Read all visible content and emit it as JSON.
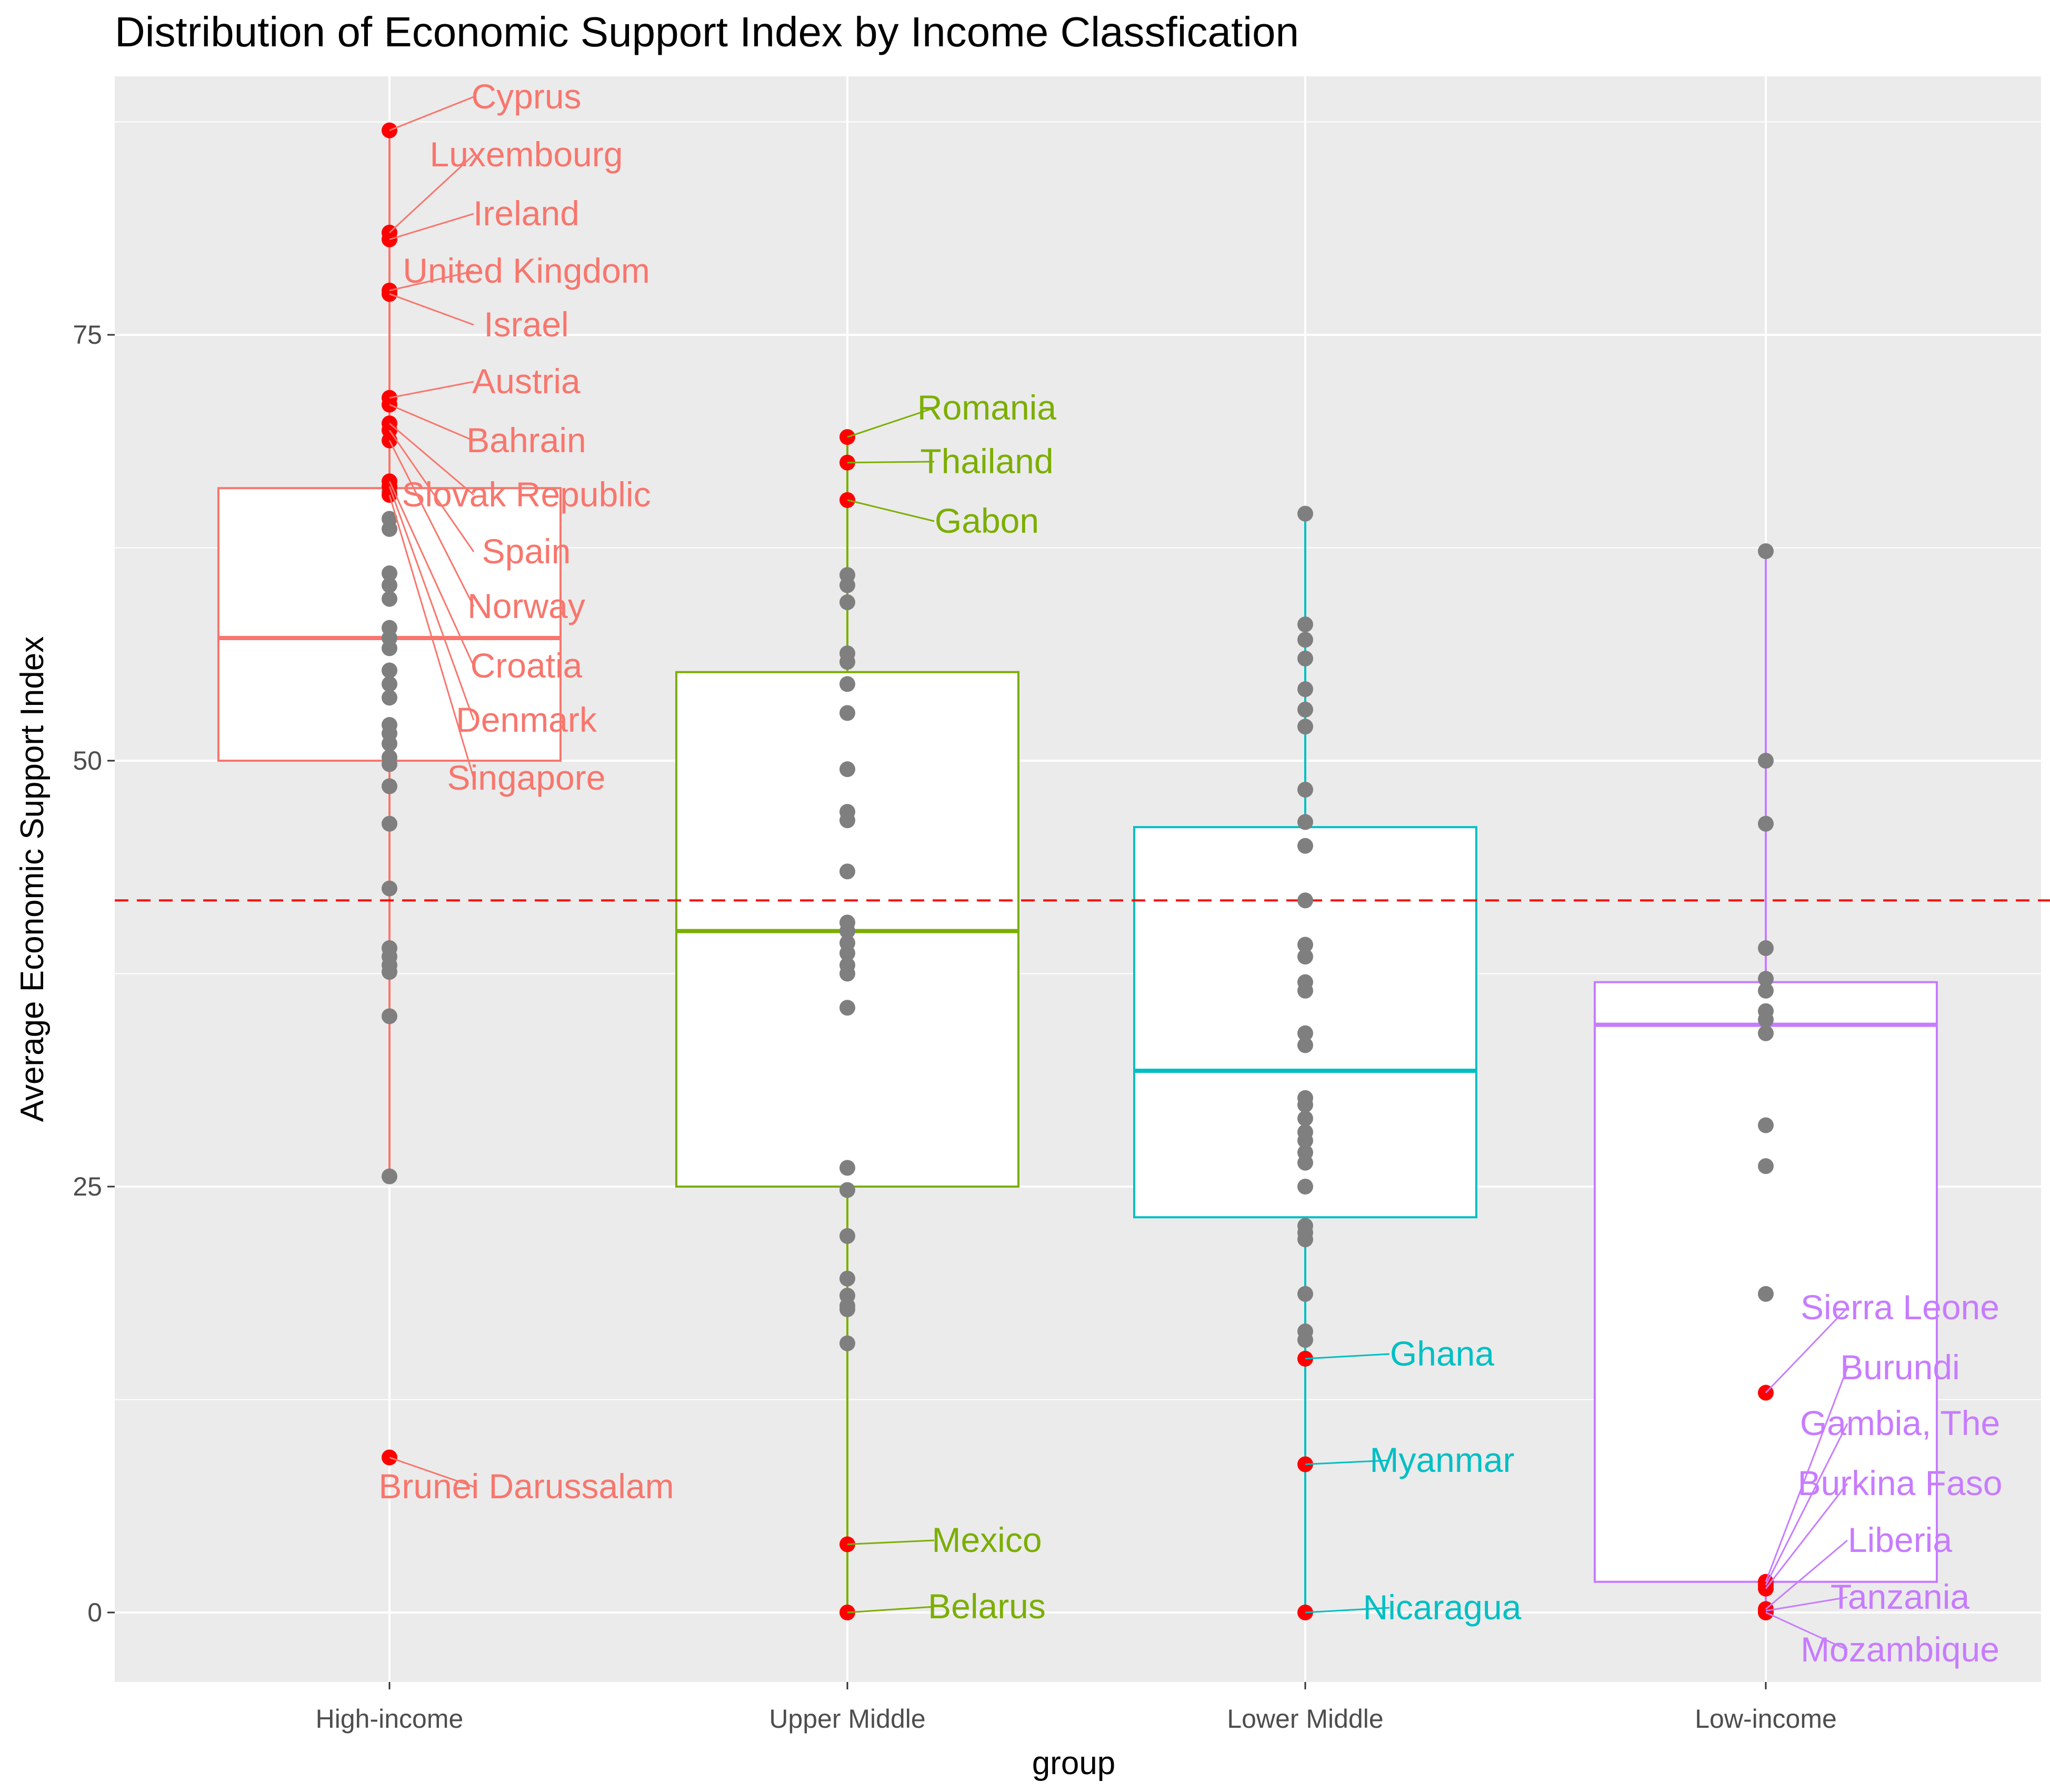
{
  "chart_data": {
    "type": "boxplot",
    "title": "Distribution of Economic Support Index by Income Classfication",
    "xlabel": "group",
    "ylabel": "Average Economic Support Index",
    "ylim": [
      -4,
      91
    ],
    "yticks": [
      0,
      25,
      50,
      75
    ],
    "grid": true,
    "reference_line": {
      "y": 41.8,
      "style": "dashed",
      "color": "#ff0000"
    },
    "point_color": "#7f7f7f",
    "outlier_point_color": "#ff0000",
    "groups": [
      {
        "name": "High-income",
        "color": "#f8766d",
        "box": {
          "q1": 50.0,
          "median": 57.2,
          "q3": 66.0,
          "whisker_low": 25.6,
          "whisker_high": 87.0
        },
        "points": [
          65.8,
          64.2,
          63.6,
          61.0,
          60.3,
          59.5,
          57.8,
          57.2,
          56.6,
          55.3,
          54.5,
          53.7,
          52.1,
          51.6,
          51.0,
          50.2,
          49.8,
          48.5,
          46.3,
          42.5,
          39.0,
          38.5,
          38.0,
          37.6,
          35.0,
          25.6
        ],
        "outliers": [
          {
            "label": "Cyprus",
            "value": 87.0
          },
          {
            "label": "Luxembourg",
            "value": 81.0
          },
          {
            "label": "Ireland",
            "value": 80.6
          },
          {
            "label": "United Kingdom",
            "value": 77.6
          },
          {
            "label": "Israel",
            "value": 77.4
          },
          {
            "label": "Austria",
            "value": 71.3
          },
          {
            "label": "Bahrain",
            "value": 70.9
          },
          {
            "label": "Slovak Republic",
            "value": 69.8
          },
          {
            "label": "Spain",
            "value": 69.4
          },
          {
            "label": "Norway",
            "value": 68.8
          },
          {
            "label": "Croatia",
            "value": 66.4
          },
          {
            "label": "Denmark",
            "value": 66.1
          },
          {
            "label": "Singapore",
            "value": 65.6
          },
          {
            "label": "Brunei Darussalam",
            "value": 9.1
          }
        ]
      },
      {
        "name": "Upper Middle",
        "color": "#7cae00",
        "box": {
          "q1": 25.0,
          "median": 40.0,
          "q3": 55.2,
          "whisker_low": 0.0,
          "whisker_high": 69.0
        },
        "points": [
          60.9,
          60.3,
          59.3,
          56.3,
          55.8,
          54.5,
          52.8,
          49.5,
          47.0,
          46.5,
          43.5,
          40.5,
          40.0,
          39.3,
          38.7,
          38.0,
          37.5,
          35.5,
          26.1,
          24.8,
          22.1,
          19.6,
          18.6,
          18.0,
          17.8,
          15.8
        ],
        "outliers": [
          {
            "label": "Romania",
            "value": 69.0
          },
          {
            "label": "Thailand",
            "value": 67.5
          },
          {
            "label": "Gabon",
            "value": 65.3
          },
          {
            "label": "Mexico",
            "value": 4.0
          },
          {
            "label": "Belarus",
            "value": 0.0
          }
        ]
      },
      {
        "name": "Lower Middle",
        "color": "#00bfc4",
        "box": {
          "q1": 23.2,
          "median": 31.8,
          "q3": 46.1,
          "whisker_low": 0.0,
          "whisker_high": 64.5
        },
        "points": [
          64.5,
          58.0,
          57.1,
          56.0,
          54.2,
          53.0,
          52.0,
          48.3,
          46.4,
          45.0,
          41.8,
          39.2,
          38.5,
          37.0,
          36.5,
          34.0,
          33.3,
          30.2,
          29.8,
          29.0,
          28.2,
          27.7,
          27.0,
          26.4,
          25.0,
          22.7,
          22.3,
          21.9,
          18.7,
          16.5,
          16.0
        ],
        "outliers": [
          {
            "label": "Ghana",
            "value": 14.9
          },
          {
            "label": "Myanmar",
            "value": 8.7
          },
          {
            "label": "Nicaragua",
            "value": 0.0
          }
        ]
      },
      {
        "name": "Low-income",
        "color": "#c77cff",
        "box": {
          "q1": 1.8,
          "median": 34.5,
          "q3": 37.0,
          "whisker_low": 0.0,
          "whisker_high": 62.3
        },
        "points": [
          62.3,
          50.0,
          46.3,
          39.0,
          37.2,
          36.5,
          35.3,
          34.8,
          34.0,
          28.6,
          26.2,
          18.7
        ],
        "outliers": [
          {
            "label": "Sierra Leone",
            "value": 12.9
          },
          {
            "label": "Burundi",
            "value": 1.8
          },
          {
            "label": "Gambia, The",
            "value": 1.6
          },
          {
            "label": "Burkina Faso",
            "value": 1.4
          },
          {
            "label": "Liberia",
            "value": 0.2
          },
          {
            "label": "Tanzania",
            "value": 0.1
          },
          {
            "label": "Mozambique",
            "value": 0.0
          }
        ]
      }
    ]
  }
}
